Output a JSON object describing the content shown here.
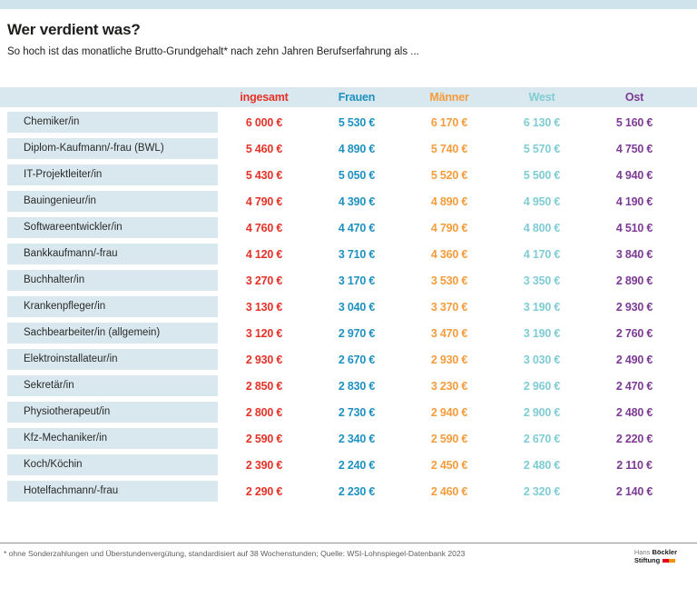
{
  "page": {
    "title": "Wer verdient was?",
    "subtitle": "So hoch ist das monatliche Brutto-Grundgehalt* nach zehn Jahren Berufserfahrung als ...",
    "footnote": "* ohne Sonderzahlungen und Überstundenvergütung, standardisiert auf 38 Wochenstunden; Quelle: WSI-Lohnspiegel-Datenbank 2023",
    "logo": {
      "line1_light": "Hans",
      "line1_bold": "Böckler",
      "line2_bold": "Stiftung"
    }
  },
  "colors": {
    "columns": [
      "#e53228",
      "#1f91c1",
      "#f59c3c",
      "#7fccd4",
      "#7d3b95"
    ],
    "row_bg": "#d8e8ee",
    "topbar_bg": "#cfe3ec",
    "logo_red": "#e2001a",
    "logo_orange": "#f29400"
  },
  "chart_data": {
    "type": "table",
    "title": "Wer verdient was?",
    "subtitle": "So hoch ist das monatliche Brutto-Grundgehalt* nach zehn Jahren Berufserfahrung als ...",
    "columns": [
      "ingesamt",
      "Frauen",
      "Männer",
      "West",
      "Ost"
    ],
    "rows": [
      {
        "label": "Chemiker/in",
        "values": [
          "6 000 €",
          "5 530 €",
          "6 170 €",
          "6 130 €",
          "5 160 €"
        ]
      },
      {
        "label": "Diplom-Kaufmann/-frau (BWL)",
        "values": [
          "5 460 €",
          "4 890 €",
          "5 740 €",
          "5 570 €",
          "4 750 €"
        ]
      },
      {
        "label": "IT-Projektleiter/in",
        "values": [
          "5 430 €",
          "5 050 €",
          "5 520 €",
          "5 500 €",
          "4 940 €"
        ]
      },
      {
        "label": "Bauingenieur/in",
        "values": [
          "4 790 €",
          "4 390 €",
          "4 890 €",
          "4 950 €",
          "4 190 €"
        ]
      },
      {
        "label": "Softwareentwickler/in",
        "values": [
          "4 760 €",
          "4 470 €",
          "4 790 €",
          "4 800 €",
          "4 510 €"
        ]
      },
      {
        "label": "Bankkaufmann/-frau",
        "values": [
          "4 120 €",
          "3 710 €",
          "4 360 €",
          "4 170 €",
          "3 840 €"
        ]
      },
      {
        "label": "Buchhalter/in",
        "values": [
          "3 270 €",
          "3 170 €",
          "3 530 €",
          "3 350 €",
          "2 890 €"
        ]
      },
      {
        "label": "Krankenpfleger/in",
        "values": [
          "3 130 €",
          "3 040 €",
          "3 370 €",
          "3 190 €",
          "2 930 €"
        ]
      },
      {
        "label": "Sachbearbeiter/in (allgemein)",
        "values": [
          "3 120 €",
          "2 970 €",
          "3 470 €",
          "3 190 €",
          "2 760 €"
        ]
      },
      {
        "label": "Elektroinstallateur/in",
        "values": [
          "2 930 €",
          "2 670 €",
          "2 930 €",
          "3 030 €",
          "2 490 €"
        ]
      },
      {
        "label": "Sekretär/in",
        "values": [
          "2 850 €",
          "2 830 €",
          "3 230 €",
          "2 960 €",
          "2 470 €"
        ]
      },
      {
        "label": "Physiotherapeut/in",
        "values": [
          "2 800 €",
          "2 730 €",
          "2 940 €",
          "2 900 €",
          "2 480 €"
        ]
      },
      {
        "label": "Kfz-Mechaniker/in",
        "values": [
          "2 590 €",
          "2 340 €",
          "2 590 €",
          "2 670 €",
          "2 220 €"
        ]
      },
      {
        "label": "Koch/Köchin",
        "values": [
          "2 390 €",
          "2 240 €",
          "2 450 €",
          "2 480 €",
          "2 110 €"
        ]
      },
      {
        "label": "Hotelfachmann/-frau",
        "values": [
          "2 290 €",
          "2 230 €",
          "2 460 €",
          "2 320 €",
          "2 140 €"
        ]
      }
    ]
  }
}
